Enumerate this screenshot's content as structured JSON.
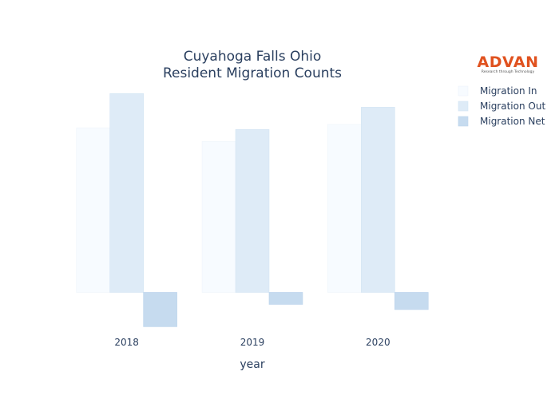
{
  "logo": {
    "text": "ADVAN",
    "tagline": "Research through Technology",
    "color": "#e0521f"
  },
  "chart_data": {
    "type": "bar",
    "title_lines": [
      "Cuyahoga Falls Ohio",
      "Resident Migration Counts"
    ],
    "xlabel": "year",
    "ylabel": "",
    "categories": [
      "2018",
      "2019",
      "2020"
    ],
    "series": [
      {
        "name": "Migration In",
        "values": [
          4800,
          4400,
          4900
        ],
        "fill": "#f7fbff",
        "stroke": "#eef4fb"
      },
      {
        "name": "Migration Out",
        "values": [
          5800,
          4750,
          5400
        ],
        "fill": "#deebf7",
        "stroke": "#d3e4f3"
      },
      {
        "name": "Migration Net",
        "values": [
          -1000,
          -350,
          -500
        ],
        "fill": "#c6dbef",
        "stroke": "#bcd4ec"
      }
    ],
    "ylim": [
      -1200,
      6200
    ],
    "grid": false,
    "show_y_ticks": false,
    "legend": "top-right"
  }
}
